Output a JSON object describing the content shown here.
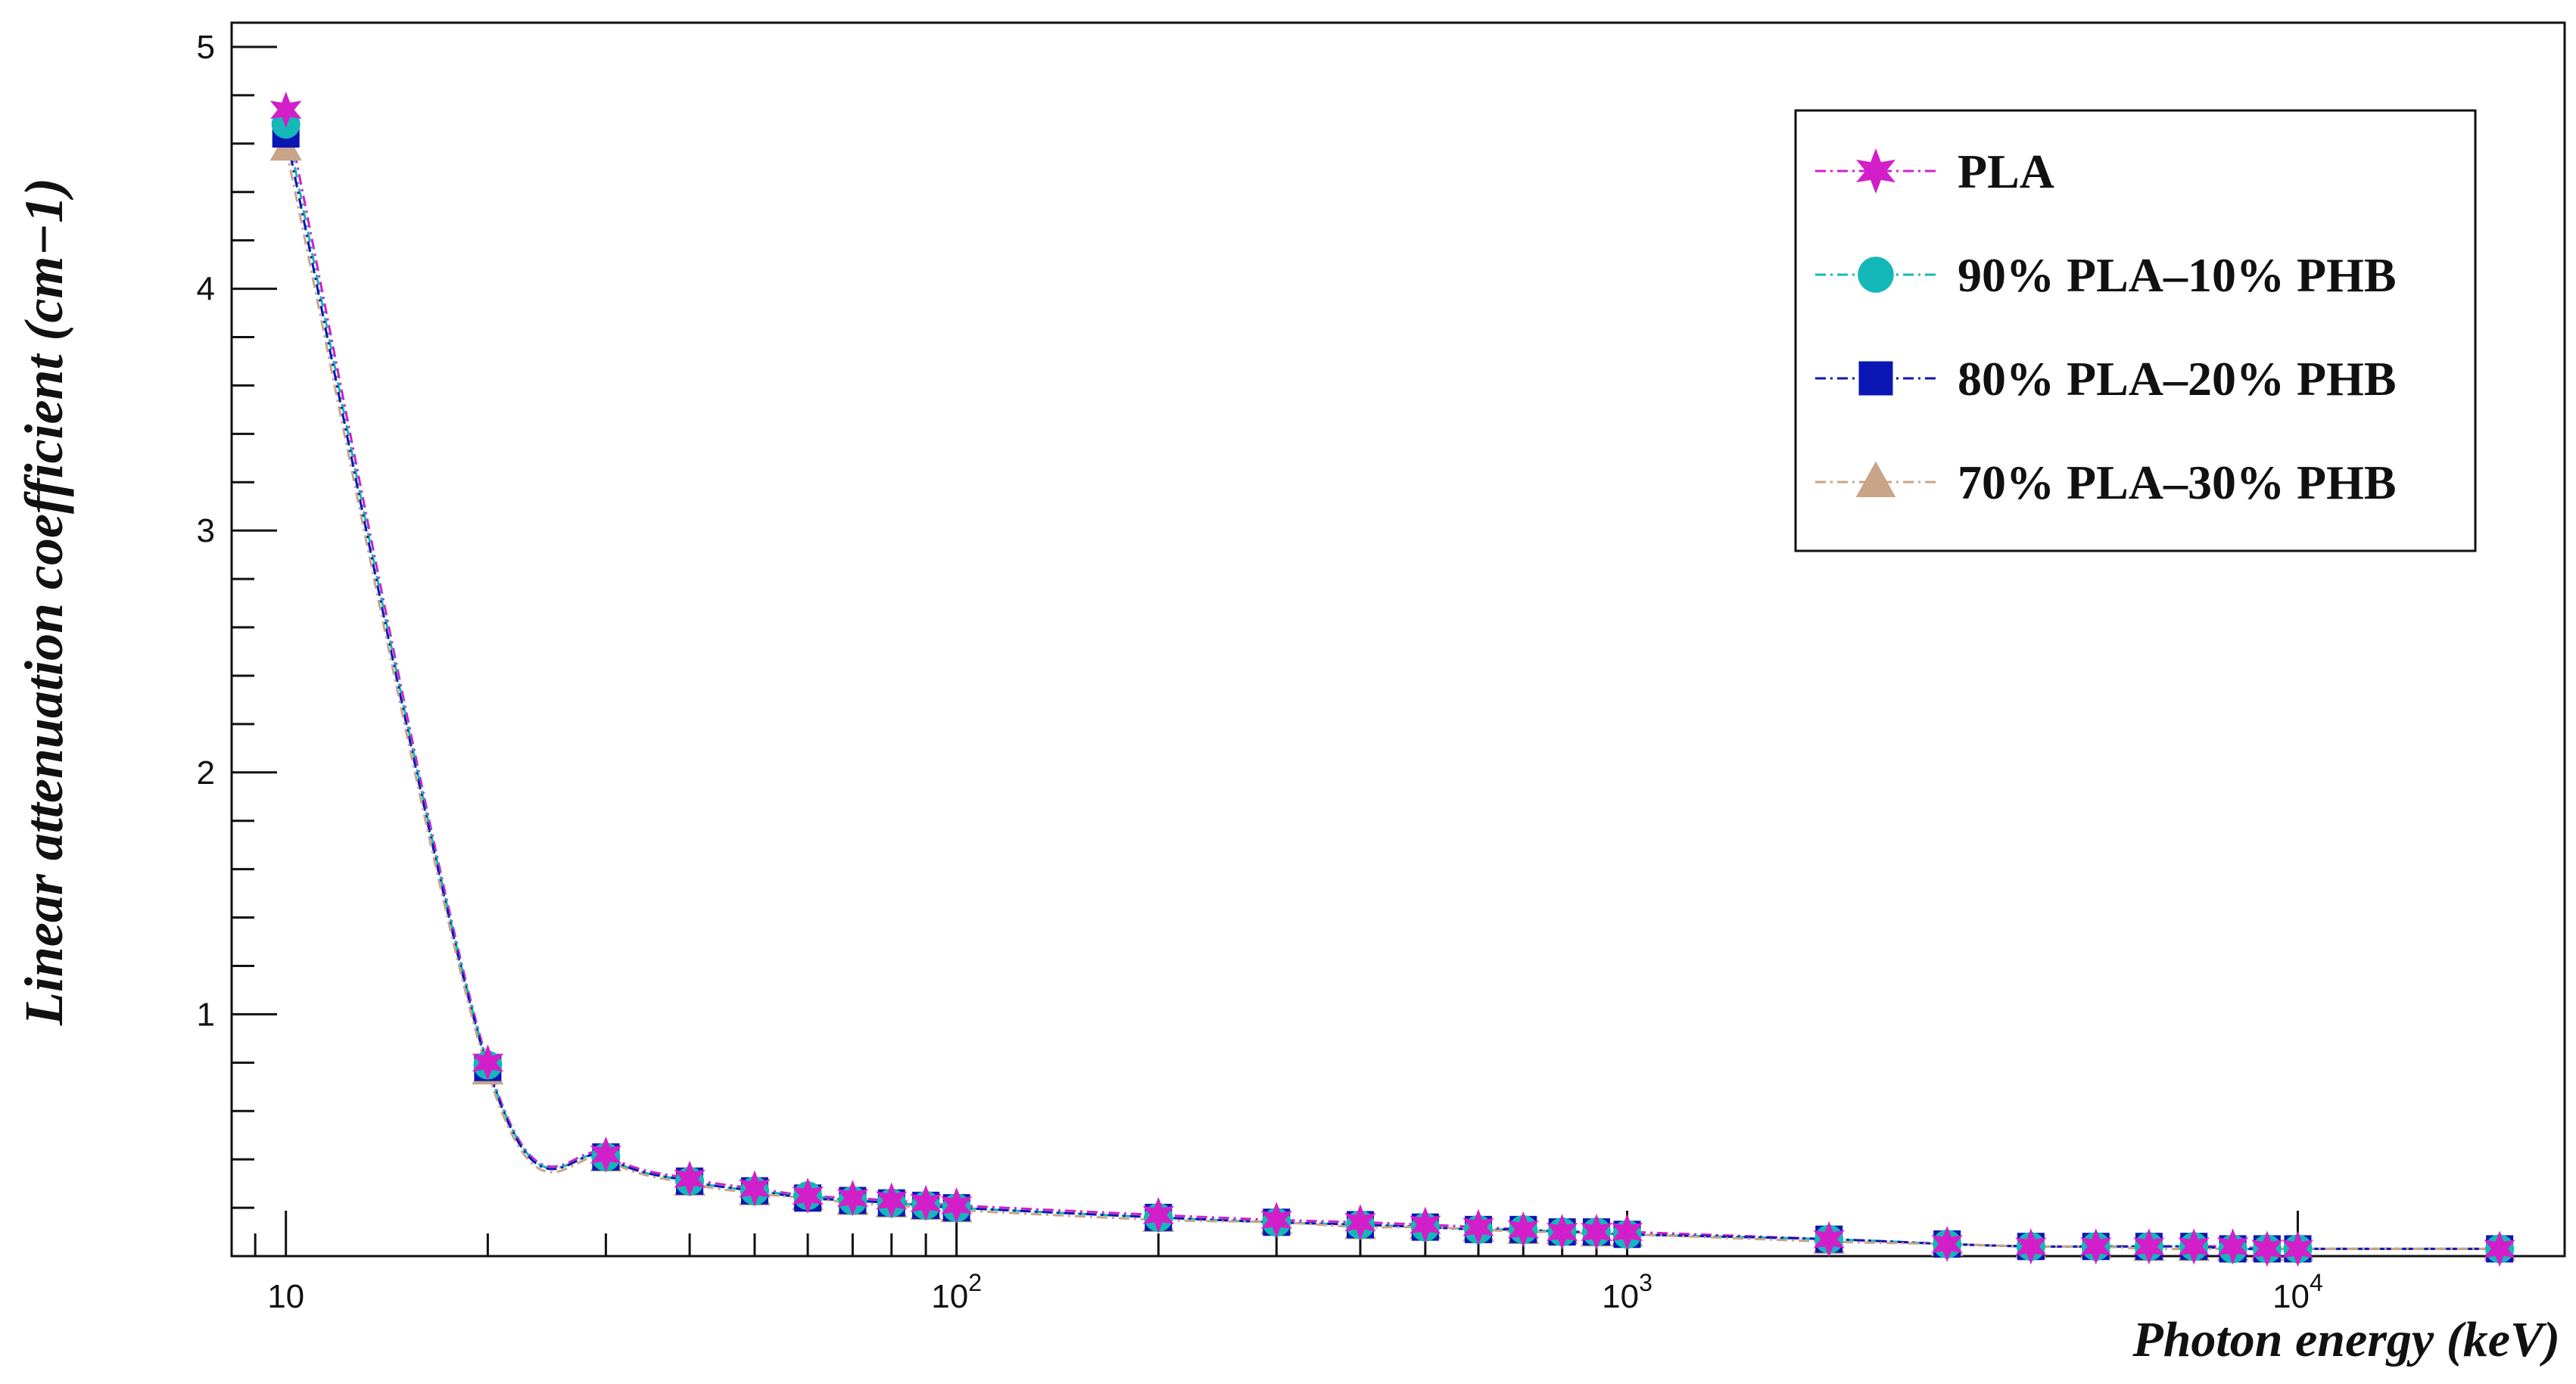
{
  "chart_data": {
    "type": "line",
    "title": "",
    "xlabel": "Photon energy (keV)",
    "ylabel": "Linear attenuation coefficient (cm−1)",
    "x_scale": "log",
    "xlim": [
      8.3,
      25000
    ],
    "ylim": [
      0,
      5.1
    ],
    "grid": false,
    "legend_position": "top-right",
    "x_tick_labels": [
      {
        "value": 10,
        "base": "10",
        "exp": ""
      },
      {
        "value": 100,
        "base": "10",
        "exp": "2"
      },
      {
        "value": 1000,
        "base": "10",
        "exp": "3"
      },
      {
        "value": 10000,
        "base": "10",
        "exp": "4"
      }
    ],
    "y_tick_labels": [
      "1",
      "2",
      "3",
      "4",
      "5"
    ],
    "x": [
      10,
      20,
      30,
      40,
      50,
      60,
      70,
      80,
      90,
      100,
      200,
      300,
      400,
      500,
      600,
      700,
      800,
      900,
      1000,
      2000,
      3000,
      4000,
      5000,
      6000,
      7000,
      8000,
      9000,
      10000,
      20000
    ],
    "series": [
      {
        "name": "PLA",
        "color": "#d21fc9",
        "marker": "star",
        "values": [
          4.74,
          0.8,
          0.42,
          0.32,
          0.28,
          0.25,
          0.24,
          0.23,
          0.22,
          0.21,
          0.17,
          0.15,
          0.14,
          0.13,
          0.12,
          0.11,
          0.1,
          0.1,
          0.1,
          0.07,
          0.05,
          0.04,
          0.04,
          0.04,
          0.04,
          0.04,
          0.03,
          0.03,
          0.03
        ]
      },
      {
        "name": "90% PLA–10% PHB",
        "color": "#14b8b8",
        "marker": "circle",
        "values": [
          4.68,
          0.79,
          0.41,
          0.31,
          0.27,
          0.25,
          0.23,
          0.22,
          0.21,
          0.2,
          0.16,
          0.14,
          0.13,
          0.12,
          0.11,
          0.11,
          0.1,
          0.1,
          0.09,
          0.07,
          0.05,
          0.04,
          0.04,
          0.04,
          0.04,
          0.03,
          0.03,
          0.03,
          0.03
        ]
      },
      {
        "name": "80% PLA–20% PHB",
        "color": "#0b17b5",
        "marker": "square",
        "values": [
          4.64,
          0.78,
          0.41,
          0.31,
          0.27,
          0.24,
          0.23,
          0.22,
          0.21,
          0.2,
          0.16,
          0.14,
          0.13,
          0.12,
          0.11,
          0.11,
          0.1,
          0.1,
          0.09,
          0.07,
          0.05,
          0.04,
          0.04,
          0.04,
          0.04,
          0.03,
          0.03,
          0.03,
          0.03
        ]
      },
      {
        "name": "70% PLA–30% PHB",
        "color": "#c9a488",
        "marker": "triangle",
        "values": [
          4.58,
          0.76,
          0.4,
          0.3,
          0.26,
          0.24,
          0.22,
          0.21,
          0.2,
          0.19,
          0.15,
          0.14,
          0.12,
          0.12,
          0.11,
          0.1,
          0.1,
          0.09,
          0.09,
          0.06,
          0.05,
          0.04,
          0.04,
          0.03,
          0.03,
          0.03,
          0.03,
          0.03,
          0.03
        ]
      }
    ]
  }
}
